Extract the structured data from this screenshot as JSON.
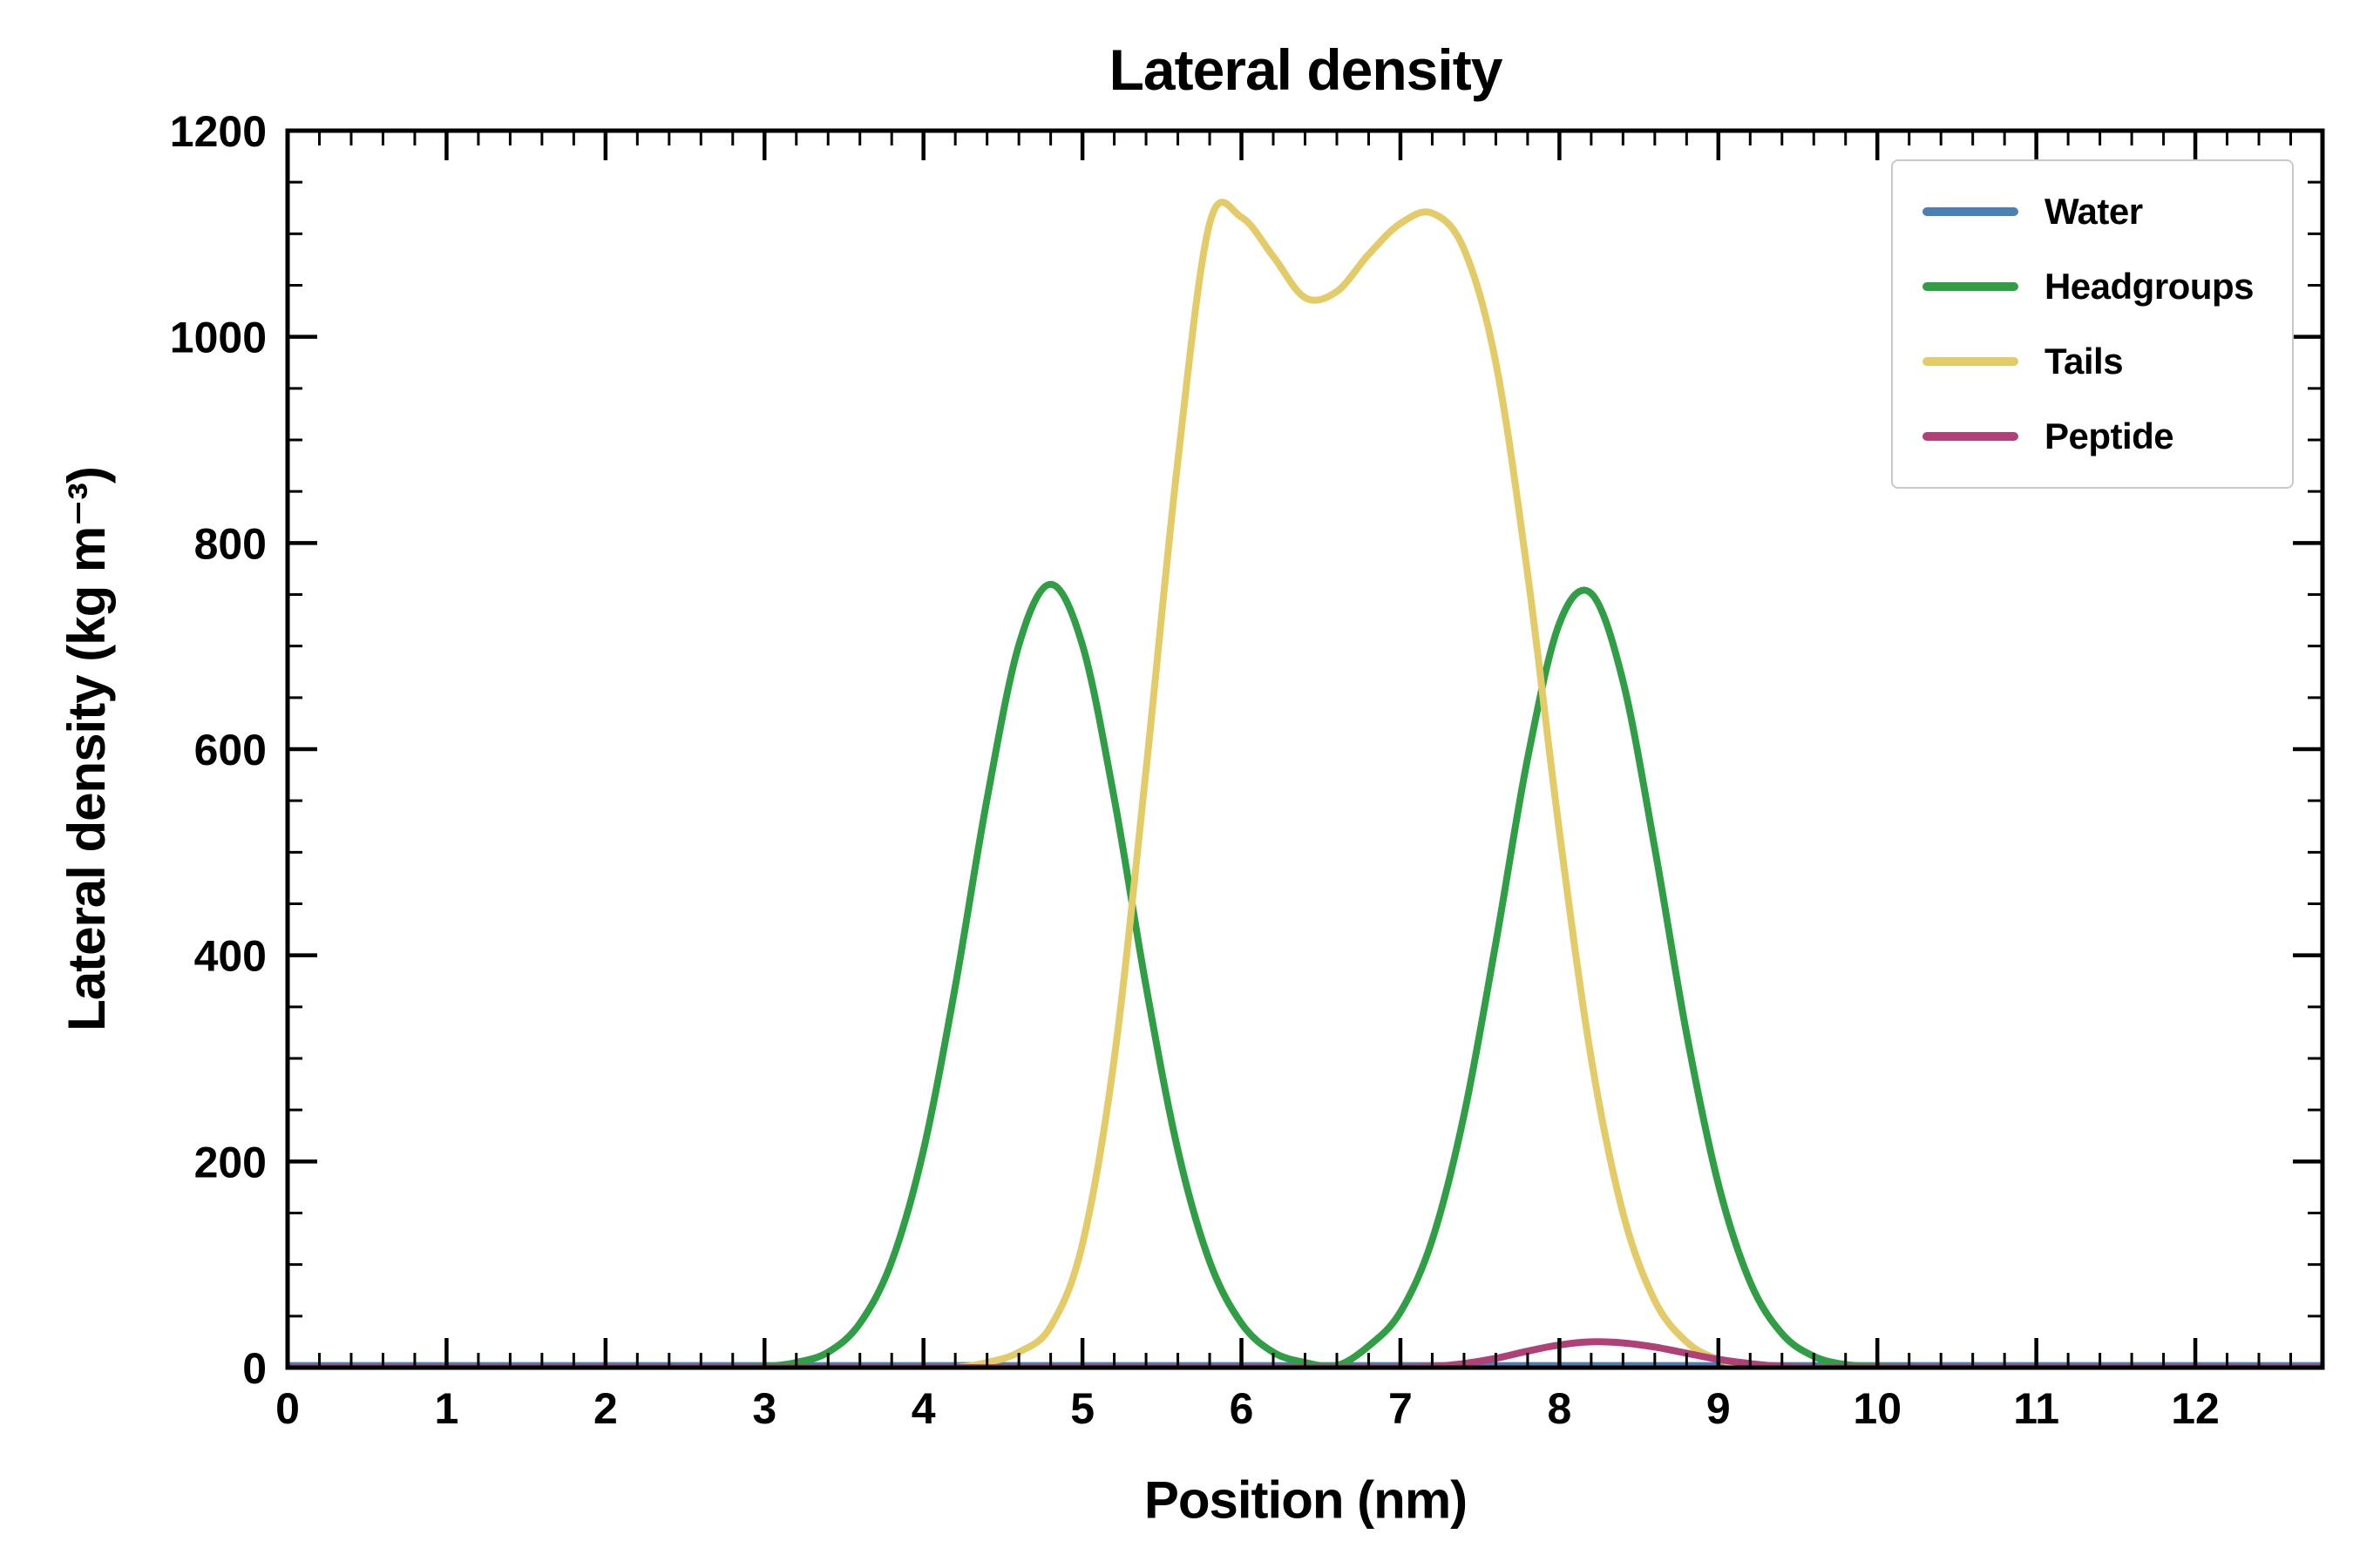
{
  "chart_data": {
    "type": "line",
    "title": "Lateral density",
    "xlabel": "Position (nm)",
    "ylabel": "Lateral density (kg m⁻³)",
    "xlim": [
      0,
      12.8
    ],
    "ylim": [
      0,
      1200
    ],
    "grid": false,
    "legend_position": "upper right",
    "x_tick_values": [
      0,
      1,
      2,
      3,
      4,
      5,
      6,
      7,
      8,
      9,
      10,
      11,
      12
    ],
    "x_tick_labels": [
      "0",
      "1",
      "2",
      "3",
      "4",
      "5",
      "6",
      "7",
      "8",
      "9",
      "10",
      "11",
      "12"
    ],
    "x_minor_step": 0.2,
    "y_tick_values": [
      0,
      200,
      400,
      600,
      800,
      1000,
      1200
    ],
    "y_tick_labels": [
      "0",
      "200",
      "400",
      "600",
      "800",
      "1000",
      "1200"
    ],
    "y_minor_step": 50,
    "x": [
      0,
      0.2,
      0.4,
      0.6,
      0.8,
      1,
      1.2,
      1.4,
      1.6,
      1.8,
      2,
      2.2,
      2.4,
      2.6,
      2.8,
      3,
      3.2,
      3.4,
      3.6,
      3.8,
      4,
      4.2,
      4.4,
      4.6,
      4.8,
      5,
      5.2,
      5.4,
      5.6,
      5.8,
      6,
      6.2,
      6.4,
      6.6,
      6.8,
      7,
      7.2,
      7.4,
      7.6,
      7.8,
      8,
      8.2,
      8.4,
      8.6,
      8.8,
      9,
      9.2,
      9.4,
      9.6,
      9.8,
      10,
      10.2,
      10.4,
      10.6,
      10.8,
      11,
      11.2,
      11.4,
      11.6,
      11.8,
      12,
      12.2,
      12.4,
      12.6,
      12.8
    ],
    "series": [
      {
        "name": "Water",
        "color": "#4a80b4",
        "values": [
          2,
          2,
          2,
          2,
          2,
          2,
          2,
          2,
          2,
          2,
          2,
          2,
          2,
          2,
          2,
          2,
          2,
          2,
          2,
          2,
          2,
          2,
          2,
          2,
          2,
          2,
          2,
          2,
          2,
          2,
          2,
          2,
          2,
          2,
          2,
          2,
          2,
          2,
          2,
          2,
          2,
          2,
          2,
          2,
          2,
          2,
          2,
          2,
          2,
          2,
          2,
          2,
          2,
          2,
          2,
          2,
          2,
          2,
          2,
          2,
          2,
          2,
          2,
          2,
          2
        ]
      },
      {
        "name": "Headgroups",
        "color": "#2f9e44",
        "values": [
          0,
          0,
          0,
          0,
          0,
          0,
          0,
          0,
          0,
          0,
          0,
          0,
          0,
          0,
          0,
          1,
          5,
          15,
          43,
          103,
          211,
          370,
          552,
          701,
          760,
          701,
          552,
          370,
          211,
          103,
          43,
          15,
          5,
          2,
          21,
          54,
          124,
          245,
          412,
          591,
          722,
          751,
          666,
          504,
          324,
          178,
          83,
          33,
          11,
          3,
          1,
          0,
          0,
          0,
          0,
          0,
          0,
          0,
          0,
          0,
          0,
          0,
          0,
          0,
          0
        ]
      },
      {
        "name": "Tails",
        "color": "#e3cc67",
        "values": [
          0,
          0,
          0,
          0,
          0,
          0,
          0,
          0,
          0,
          0,
          0,
          0,
          0,
          0,
          0,
          0,
          0,
          0,
          0,
          0,
          0,
          0,
          5,
          15,
          40,
          120,
          300,
          580,
          880,
          1110,
          1116,
          1078,
          1038,
          1044,
          1080,
          1110,
          1120,
          1085,
          975,
          770,
          520,
          300,
          150,
          65,
          25,
          8,
          2,
          0,
          0,
          0,
          0,
          0,
          0,
          0,
          0,
          0,
          0,
          0,
          0,
          0,
          0,
          0,
          0,
          0,
          0
        ]
      },
      {
        "name": "Peptide",
        "color": "#b04178",
        "values": [
          0,
          0,
          0,
          0,
          0,
          0,
          0,
          0,
          0,
          0,
          0,
          0,
          0,
          0,
          0,
          0,
          0,
          0,
          0,
          0,
          0,
          0,
          0,
          0,
          0,
          0,
          0,
          0,
          0,
          0,
          0,
          0,
          0,
          0,
          0,
          0,
          1,
          4,
          9,
          16,
          22,
          25,
          24,
          20,
          14,
          8,
          4,
          1,
          0,
          0,
          0,
          0,
          0,
          0,
          0,
          0,
          0,
          0,
          0,
          0,
          0,
          0,
          0,
          0,
          0
        ]
      }
    ]
  }
}
